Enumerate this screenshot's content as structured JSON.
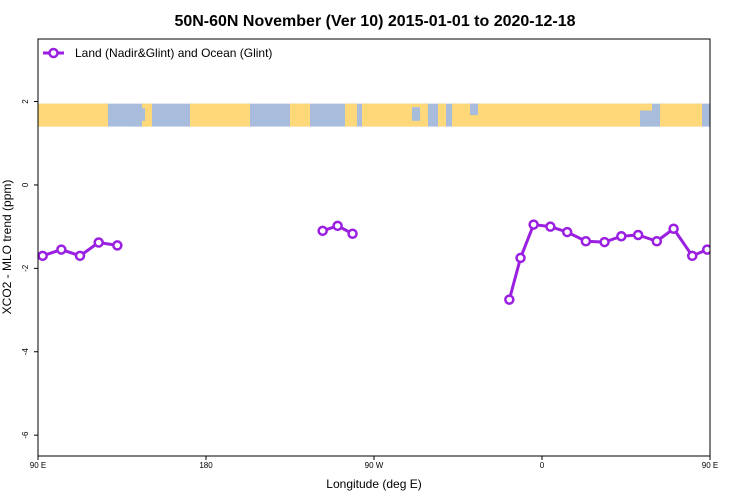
{
  "chart_data": {
    "type": "line",
    "title": "50N-60N November (Ver 10)   2015-01-01 to 2020-12-18",
    "xlabel": "Longitude (deg E)",
    "ylabel": "XCO2 - MLO trend (ppm)",
    "xlim": [
      90,
      450
    ],
    "ylim": [
      -6.5,
      3.5
    ],
    "x_ticks": [
      {
        "value": 90,
        "label": "90 E"
      },
      {
        "value": 180,
        "label": "180"
      },
      {
        "value": 270,
        "label": "90 W"
      },
      {
        "value": 360,
        "label": "0"
      },
      {
        "value": 450,
        "label": "90 E"
      },
      {
        "value": 540,
        "label": "180"
      }
    ],
    "y_ticks": [
      {
        "value": 2,
        "label": "2"
      },
      {
        "value": 0,
        "label": "0"
      },
      {
        "value": -2,
        "label": "-2"
      },
      {
        "value": -4,
        "label": "-4"
      },
      {
        "value": -6,
        "label": "-6"
      }
    ],
    "legend": {
      "position": "top-left"
    },
    "colors": {
      "series": "#9a1fe0",
      "land": "#ffd87a",
      "ocean": "#a8bcdc"
    },
    "map_band": {
      "y_top": 1.95,
      "y_bottom": 1.4
    },
    "series": [
      {
        "name": "Land (Nadir&Glint) and Ocean (Glint)",
        "segments": [
          [
            [
              92.5,
              -1.7
            ],
            [
              102.5,
              -1.55
            ],
            [
              112.5,
              -1.7
            ],
            [
              122.5,
              -1.38
            ],
            [
              132.5,
              -1.45
            ]
          ],
          [
            [
              242.5,
              -1.1
            ],
            [
              250.5,
              -0.98
            ],
            [
              258.5,
              -1.17
            ]
          ],
          [
            [
              342.5,
              -2.75
            ],
            [
              348.5,
              -1.75
            ],
            [
              355.5,
              -0.95
            ],
            [
              364.5,
              -1.0
            ],
            [
              373.5,
              -1.13
            ],
            [
              383.5,
              -1.35
            ],
            [
              393.5,
              -1.37
            ],
            [
              402.5,
              -1.23
            ],
            [
              411.5,
              -1.2
            ],
            [
              421.5,
              -1.35
            ],
            [
              430.5,
              -1.05
            ],
            [
              440.5,
              -1.7
            ],
            [
              448.5,
              -1.55
            ],
            [
              457.5,
              -1.7
            ],
            [
              466.5,
              -1.38
            ],
            [
              475.5,
              -1.45
            ]
          ]
        ]
      }
    ]
  }
}
